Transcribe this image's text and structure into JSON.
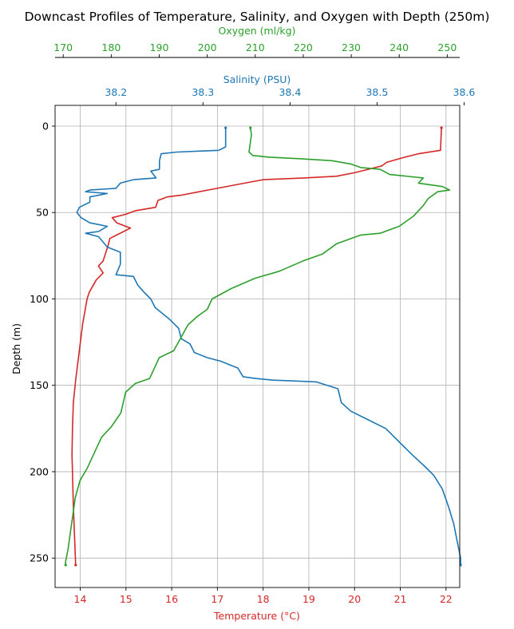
{
  "chart_data": {
    "type": "line",
    "title": "Downcast Profiles of Temperature, Salinity, and Oxygen with Depth (250m)",
    "ylabel": "Depth (m)",
    "ylim": [
      267,
      -12
    ],
    "yticks": [
      0,
      50,
      100,
      150,
      200,
      250
    ],
    "grid": true,
    "colors": {
      "temperature": "#d62728",
      "salinity": "#1f77b4",
      "oxygen": "#2ca02c",
      "grid": "#b0b0b0",
      "axis": "#000000"
    },
    "axes": {
      "temperature": {
        "label": "Temperature (°C)",
        "position": "bottom",
        "lim": [
          13.45,
          22.3
        ],
        "ticks": [
          14,
          15,
          16,
          17,
          18,
          19,
          20,
          21,
          22
        ]
      },
      "salinity": {
        "label": "Salinity (PSU)",
        "position": "top",
        "lim": [
          38.13,
          38.595
        ],
        "ticks": [
          38.2,
          38.3,
          38.4,
          38.5,
          38.6
        ]
      },
      "oxygen": {
        "label": "Oxygen (ml/kg)",
        "position": "top-offset",
        "lim": [
          168.3,
          252.6
        ],
        "ticks": [
          170,
          180,
          190,
          200,
          210,
          220,
          230,
          240,
          250
        ]
      }
    },
    "series": [
      {
        "key": "temperature",
        "points": [
          [
            21.9,
            1
          ],
          [
            21.88,
            14
          ],
          [
            21.4,
            16
          ],
          [
            21.1,
            18
          ],
          [
            20.7,
            21
          ],
          [
            20.6,
            23
          ],
          [
            20.3,
            25
          ],
          [
            20.0,
            27
          ],
          [
            19.6,
            29
          ],
          [
            18.9,
            30
          ],
          [
            18.0,
            31
          ],
          [
            17.6,
            33
          ],
          [
            17.0,
            36
          ],
          [
            16.6,
            38
          ],
          [
            16.2,
            40
          ],
          [
            15.9,
            41
          ],
          [
            15.7,
            43
          ],
          [
            15.65,
            47
          ],
          [
            15.2,
            49
          ],
          [
            15.0,
            51
          ],
          [
            14.7,
            53
          ],
          [
            14.8,
            56
          ],
          [
            15.1,
            59
          ],
          [
            14.8,
            63
          ],
          [
            14.65,
            65
          ],
          [
            14.6,
            70
          ],
          [
            14.5,
            78
          ],
          [
            14.4,
            81
          ],
          [
            14.5,
            85
          ],
          [
            14.35,
            89
          ],
          [
            14.2,
            96
          ],
          [
            14.15,
            100
          ],
          [
            14.05,
            115
          ],
          [
            13.98,
            130
          ],
          [
            13.9,
            147
          ],
          [
            13.85,
            160
          ],
          [
            13.83,
            175
          ],
          [
            13.82,
            190
          ],
          [
            13.83,
            200
          ],
          [
            13.85,
            220
          ],
          [
            13.88,
            240
          ],
          [
            13.9,
            254
          ]
        ]
      },
      {
        "key": "salinity",
        "points": [
          [
            38.326,
            1
          ],
          [
            38.326,
            12
          ],
          [
            38.318,
            14
          ],
          [
            38.27,
            15
          ],
          [
            38.252,
            16
          ],
          [
            38.25,
            20
          ],
          [
            38.25,
            25
          ],
          [
            38.24,
            26
          ],
          [
            38.246,
            30
          ],
          [
            38.22,
            31
          ],
          [
            38.205,
            33
          ],
          [
            38.2,
            36
          ],
          [
            38.17,
            37
          ],
          [
            38.165,
            38
          ],
          [
            38.19,
            39
          ],
          [
            38.17,
            41
          ],
          [
            38.17,
            44
          ],
          [
            38.158,
            47
          ],
          [
            38.155,
            50
          ],
          [
            38.16,
            53
          ],
          [
            38.17,
            56
          ],
          [
            38.19,
            58
          ],
          [
            38.18,
            61
          ],
          [
            38.165,
            62
          ],
          [
            38.18,
            64
          ],
          [
            38.185,
            67
          ],
          [
            38.19,
            70
          ],
          [
            38.205,
            73
          ],
          [
            38.205,
            80
          ],
          [
            38.2,
            86
          ],
          [
            38.22,
            87
          ],
          [
            38.225,
            92
          ],
          [
            38.232,
            96
          ],
          [
            38.24,
            100
          ],
          [
            38.245,
            105
          ],
          [
            38.262,
            112
          ],
          [
            38.272,
            117
          ],
          [
            38.275,
            123
          ],
          [
            38.285,
            126
          ],
          [
            38.29,
            131
          ],
          [
            38.305,
            134
          ],
          [
            38.32,
            136
          ],
          [
            38.33,
            138
          ],
          [
            38.34,
            140
          ],
          [
            38.346,
            145
          ],
          [
            38.36,
            146
          ],
          [
            38.38,
            147
          ],
          [
            38.43,
            148
          ],
          [
            38.455,
            152
          ],
          [
            38.459,
            160
          ],
          [
            38.47,
            165
          ],
          [
            38.49,
            170
          ],
          [
            38.51,
            175
          ],
          [
            38.52,
            180
          ],
          [
            38.53,
            185
          ],
          [
            38.54,
            190
          ],
          [
            38.555,
            197
          ],
          [
            38.565,
            202
          ],
          [
            38.575,
            210
          ],
          [
            38.582,
            220
          ],
          [
            38.588,
            230
          ],
          [
            38.592,
            240
          ],
          [
            38.596,
            250
          ],
          [
            38.596,
            254
          ]
        ]
      },
      {
        "key": "oxygen",
        "points": [
          [
            209.0,
            1
          ],
          [
            209.2,
            5
          ],
          [
            208.7,
            15
          ],
          [
            209.5,
            17
          ],
          [
            213,
            18
          ],
          [
            220,
            19
          ],
          [
            226,
            20
          ],
          [
            230,
            22
          ],
          [
            232,
            24
          ],
          [
            236,
            25
          ],
          [
            238,
            28
          ],
          [
            245,
            30
          ],
          [
            244,
            33
          ],
          [
            249,
            35
          ],
          [
            250.5,
            37
          ],
          [
            248,
            38
          ],
          [
            246,
            42
          ],
          [
            245,
            46
          ],
          [
            243,
            52
          ],
          [
            240,
            58
          ],
          [
            236,
            62
          ],
          [
            232,
            63
          ],
          [
            227,
            68
          ],
          [
            224,
            74
          ],
          [
            220,
            78
          ],
          [
            215,
            84
          ],
          [
            210,
            88
          ],
          [
            205,
            94
          ],
          [
            201,
            100
          ],
          [
            200,
            106
          ],
          [
            198,
            110
          ],
          [
            196,
            115
          ],
          [
            195,
            120
          ],
          [
            194,
            125
          ],
          [
            193,
            130
          ],
          [
            190,
            134
          ],
          [
            189,
            140
          ],
          [
            188,
            146
          ],
          [
            185,
            149
          ],
          [
            183,
            154
          ],
          [
            182.5,
            160
          ],
          [
            182,
            166
          ],
          [
            181,
            170
          ],
          [
            180,
            174
          ],
          [
            178,
            180
          ],
          [
            177,
            186
          ],
          [
            176,
            192
          ],
          [
            175,
            198
          ],
          [
            173.5,
            205
          ],
          [
            172.5,
            215
          ],
          [
            172,
            225
          ],
          [
            171.5,
            235
          ],
          [
            171,
            245
          ],
          [
            170.5,
            252
          ],
          [
            170.5,
            254
          ]
        ]
      }
    ]
  }
}
